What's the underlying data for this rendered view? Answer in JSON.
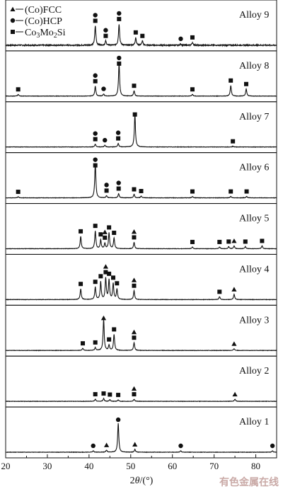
{
  "chart_data": {
    "type": "line",
    "title": "",
    "xlabel": "2θ/(°)",
    "xlabel_parts": {
      "prefix": "2",
      "var": "θ",
      "suffix": "/(°)"
    },
    "ylabel": "",
    "xlim": [
      20,
      85
    ],
    "xticks": [
      20,
      30,
      40,
      50,
      60,
      70,
      80
    ],
    "stacked": true,
    "legend": {
      "placement": "top-left",
      "entries": [
        {
          "key": "fcc",
          "marker": "triangle",
          "label": "(Co)FCC"
        },
        {
          "key": "hcp",
          "marker": "circle",
          "label": "(Co)HCP"
        },
        {
          "key": "laves",
          "marker": "square",
          "label": "Co3Mo2Si",
          "label_parts": {
            "a": "Co",
            "s1": "3",
            "b": "Mo",
            "s2": "2",
            "c": "Si"
          }
        }
      ]
    },
    "series": [
      {
        "name": "Alloy 9",
        "noise": 0.03,
        "peaks": [
          [
            41.5,
            0.55
          ],
          [
            44.0,
            0.12
          ],
          [
            47.2,
            0.6
          ],
          [
            51.2,
            0.22
          ],
          [
            52.8,
            0.12
          ],
          [
            62.0,
            0.04
          ],
          [
            64.8,
            0.08
          ]
        ],
        "markers": [
          [
            41.5,
            [
              "hcp",
              "laves"
            ]
          ],
          [
            44.0,
            [
              "hcp",
              "laves"
            ]
          ],
          [
            47.2,
            [
              "hcp",
              "laves"
            ]
          ],
          [
            51.2,
            [
              "laves"
            ]
          ],
          [
            52.8,
            [
              "laves"
            ]
          ],
          [
            62.0,
            [
              "hcp"
            ]
          ],
          [
            64.8,
            [
              "laves"
            ]
          ]
        ]
      },
      {
        "name": "Alloy 8",
        "noise": 0.01,
        "peaks": [
          [
            23.0,
            0.05
          ],
          [
            41.5,
            0.28
          ],
          [
            43.5,
            0.06
          ],
          [
            47.2,
            0.92
          ],
          [
            50.8,
            0.15
          ],
          [
            64.8,
            0.05
          ],
          [
            74.0,
            0.3
          ],
          [
            77.7,
            0.2
          ]
        ],
        "markers": [
          [
            23.0,
            [
              "laves"
            ]
          ],
          [
            41.5,
            [
              "hcp",
              "laves"
            ]
          ],
          [
            43.5,
            [
              "hcp"
            ]
          ],
          [
            47.2,
            [
              "hcp",
              "laves"
            ]
          ],
          [
            50.8,
            [
              "laves"
            ]
          ],
          [
            64.8,
            [
              "laves"
            ]
          ],
          [
            74.0,
            [
              "laves"
            ]
          ],
          [
            77.7,
            [
              "laves"
            ]
          ]
        ]
      },
      {
        "name": "Alloy 7",
        "noise": 0.01,
        "peaks": [
          [
            41.5,
            0.08
          ],
          [
            43.8,
            0.05
          ],
          [
            47.0,
            0.1
          ],
          [
            51.0,
            0.92
          ],
          [
            74.5,
            0.02
          ]
        ],
        "markers": [
          [
            41.5,
            [
              "hcp",
              "laves"
            ]
          ],
          [
            43.8,
            [
              "hcp"
            ]
          ],
          [
            47.0,
            [
              "hcp",
              "laves"
            ]
          ],
          [
            51.0,
            [
              "laves"
            ]
          ],
          [
            74.5,
            [
              "laves"
            ]
          ]
        ]
      },
      {
        "name": "Alloy 6",
        "noise": 0.01,
        "peaks": [
          [
            23.0,
            0.03
          ],
          [
            41.5,
            0.98
          ],
          [
            44.2,
            0.06
          ],
          [
            47.1,
            0.12
          ],
          [
            50.8,
            0.1
          ],
          [
            52.5,
            0.05
          ],
          [
            64.8,
            0.04
          ],
          [
            74.0,
            0.04
          ],
          [
            77.8,
            0.04
          ]
        ],
        "markers": [
          [
            23.0,
            [
              "laves"
            ]
          ],
          [
            41.5,
            [
              "hcp",
              "laves"
            ]
          ],
          [
            44.2,
            [
              "hcp",
              "laves"
            ]
          ],
          [
            47.1,
            [
              "hcp",
              "laves"
            ]
          ],
          [
            50.8,
            [
              "laves"
            ]
          ],
          [
            52.5,
            [
              "laves"
            ]
          ],
          [
            64.8,
            [
              "laves"
            ]
          ],
          [
            74.0,
            [
              "laves"
            ]
          ],
          [
            77.8,
            [
              "laves"
            ]
          ]
        ]
      },
      {
        "name": "Alloy 5",
        "noise": 0.01,
        "peaks": [
          [
            38.0,
            0.35
          ],
          [
            41.5,
            0.5
          ],
          [
            42.8,
            0.25
          ],
          [
            43.8,
            0.15
          ],
          [
            44.8,
            0.45
          ],
          [
            46.0,
            0.3
          ],
          [
            50.8,
            0.18
          ],
          [
            64.8,
            0.05
          ],
          [
            71.3,
            0.05
          ],
          [
            73.5,
            0.06
          ],
          [
            74.8,
            0.08
          ],
          [
            77.5,
            0.06
          ],
          [
            81.5,
            0.08
          ]
        ],
        "markers": [
          [
            38.0,
            [
              "laves"
            ]
          ],
          [
            41.5,
            [
              "laves"
            ]
          ],
          [
            42.8,
            [
              "laves"
            ]
          ],
          [
            43.8,
            [
              "fcc",
              "laves"
            ]
          ],
          [
            44.8,
            [
              "laves"
            ]
          ],
          [
            46.0,
            [
              "laves"
            ]
          ],
          [
            50.8,
            [
              "fcc",
              "laves"
            ]
          ],
          [
            64.8,
            [
              "laves"
            ]
          ],
          [
            71.3,
            [
              "laves"
            ]
          ],
          [
            73.5,
            [
              "laves"
            ]
          ],
          [
            74.8,
            [
              "fcc"
            ]
          ],
          [
            77.5,
            [
              "laves"
            ]
          ],
          [
            81.5,
            [
              "laves"
            ]
          ]
        ]
      },
      {
        "name": "Alloy 4",
        "noise": 0.01,
        "peaks": [
          [
            38.0,
            0.3
          ],
          [
            41.5,
            0.35
          ],
          [
            42.8,
            0.5
          ],
          [
            44.0,
            0.6
          ],
          [
            44.8,
            0.55
          ],
          [
            45.8,
            0.45
          ],
          [
            46.7,
            0.3
          ],
          [
            50.8,
            0.25
          ],
          [
            71.3,
            0.08
          ],
          [
            74.8,
            0.15
          ]
        ],
        "markers": [
          [
            38.0,
            [
              "laves"
            ]
          ],
          [
            41.5,
            [
              "laves"
            ]
          ],
          [
            42.8,
            [
              "laves"
            ]
          ],
          [
            44.0,
            [
              "fcc",
              "laves"
            ]
          ],
          [
            44.8,
            [
              "laves"
            ]
          ],
          [
            45.8,
            [
              "laves"
            ]
          ],
          [
            46.7,
            [
              "laves"
            ]
          ],
          [
            50.8,
            [
              "fcc",
              "laves"
            ]
          ],
          [
            71.3,
            [
              "laves"
            ]
          ],
          [
            74.8,
            [
              "fcc"
            ]
          ]
        ]
      },
      {
        "name": "Alloy 3",
        "noise": 0.01,
        "peaks": [
          [
            38.5,
            0.06
          ],
          [
            41.5,
            0.08
          ],
          [
            43.5,
            0.88
          ],
          [
            44.8,
            0.15
          ],
          [
            46.0,
            0.45
          ],
          [
            50.8,
            0.22
          ],
          [
            74.8,
            0.05
          ]
        ],
        "markers": [
          [
            38.5,
            [
              "laves"
            ]
          ],
          [
            41.5,
            [
              "laves"
            ]
          ],
          [
            43.5,
            [
              "fcc"
            ]
          ],
          [
            44.8,
            [
              "laves"
            ]
          ],
          [
            46.0,
            [
              "laves"
            ]
          ],
          [
            50.8,
            [
              "fcc",
              "laves"
            ]
          ],
          [
            74.8,
            [
              "fcc"
            ]
          ]
        ]
      },
      {
        "name": "Alloy 2",
        "noise": 0.01,
        "peaks": [
          [
            41.5,
            0.06
          ],
          [
            43.5,
            0.08
          ],
          [
            45.0,
            0.05
          ],
          [
            47.0,
            0.04
          ],
          [
            50.8,
            0.06
          ],
          [
            75.0,
            0.06
          ]
        ],
        "markers": [
          [
            41.5,
            [
              "laves"
            ]
          ],
          [
            43.5,
            [
              "laves"
            ]
          ],
          [
            45.0,
            [
              "laves"
            ]
          ],
          [
            47.0,
            [
              "laves"
            ]
          ],
          [
            50.8,
            [
              "fcc",
              "laves"
            ]
          ],
          [
            75.0,
            [
              "fcc"
            ]
          ]
        ]
      },
      {
        "name": "Alloy 1",
        "noise": 0.01,
        "peaks": [
          [
            41.0,
            0.04
          ],
          [
            44.2,
            0.06
          ],
          [
            47.0,
            0.82
          ],
          [
            51.0,
            0.08
          ],
          [
            62.0,
            0.04
          ],
          [
            84.0,
            0.04
          ]
        ],
        "markers": [
          [
            41.0,
            [
              "hcp"
            ]
          ],
          [
            44.2,
            [
              "fcc"
            ]
          ],
          [
            47.0,
            [
              "hcp"
            ]
          ],
          [
            51.0,
            [
              "fcc"
            ]
          ],
          [
            62.0,
            [
              "hcp"
            ]
          ],
          [
            84.0,
            [
              "hcp"
            ]
          ]
        ]
      }
    ]
  },
  "watermark": "有色金属在线"
}
